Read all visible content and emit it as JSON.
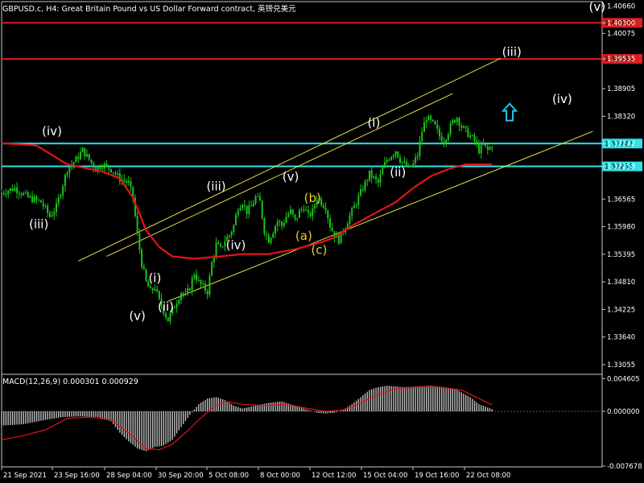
{
  "window": {
    "title": "GBPUSD.c, H4:  Great Britain Pound vs US Dollar Forward contract, 英镑兑美元"
  },
  "colors": {
    "background": "#000000",
    "candle": "#19c419",
    "ma": "#e0141c",
    "support_resistance_red": "#e21d1d",
    "support_resistance_cyan": "#2fe3e8",
    "channel": "#e8e24a",
    "wave_label_white": "#ffffff",
    "wave_label_yellow": "#e8d21e",
    "arrow": "#21c4e8",
    "macd_hist": "#c0c0c0",
    "macd_signal": "#e0141c"
  },
  "chart_data": [
    {
      "type": "candlestick",
      "symbol": "GBPUSD.c",
      "timeframe": "H4",
      "ylim": [
        1.3285,
        1.4075
      ],
      "y_ticks": [
        "1.40660",
        "1.40300",
        "1.40075",
        "1.39535",
        "1.38905",
        "1.38320",
        "1.37742",
        "1.37258",
        "1.36565",
        "1.35980",
        "1.35395",
        "1.34810",
        "1.34225",
        "1.33640",
        "1.33055"
      ],
      "x_tick_labels": [
        "21 Sep 2021",
        "23 Sep 16:00",
        "28 Sep 04:00",
        "30 Sep 20:00",
        "5 Oct 08:00",
        "8 Oct 00:00",
        "12 Oct 12:00",
        "15 Oct 04:00",
        "19 Oct 16:00",
        "22 Oct 08:00"
      ],
      "close_path": [
        [
          0,
          1.367
        ],
        [
          6,
          1.368
        ],
        [
          12,
          1.366
        ],
        [
          18,
          1.365
        ],
        [
          22,
          1.362
        ],
        [
          25,
          1.364
        ],
        [
          30,
          1.372
        ],
        [
          34,
          1.374
        ],
        [
          37,
          1.376
        ],
        [
          40,
          1.374
        ],
        [
          43,
          1.372
        ],
        [
          46,
          1.373
        ],
        [
          50,
          1.372
        ],
        [
          54,
          1.37
        ],
        [
          58,
          1.369
        ],
        [
          60,
          1.366
        ],
        [
          62,
          1.358
        ],
        [
          64,
          1.352
        ],
        [
          66,
          1.348
        ],
        [
          68,
          1.346
        ],
        [
          70,
          1.347
        ],
        [
          72,
          1.344
        ],
        [
          74,
          1.342
        ],
        [
          76,
          1.34
        ],
        [
          78,
          1.342
        ],
        [
          80,
          1.344
        ],
        [
          82,
          1.346
        ],
        [
          84,
          1.345
        ],
        [
          86,
          1.347
        ],
        [
          88,
          1.35
        ],
        [
          90,
          1.348
        ],
        [
          92,
          1.347
        ],
        [
          94,
          1.346
        ],
        [
          96,
          1.352
        ],
        [
          98,
          1.356
        ],
        [
          100,
          1.355
        ],
        [
          102,
          1.357
        ],
        [
          104,
          1.358
        ],
        [
          106,
          1.36
        ],
        [
          108,
          1.364
        ],
        [
          110,
          1.365
        ],
        [
          112,
          1.363
        ],
        [
          114,
          1.364
        ],
        [
          116,
          1.366
        ],
        [
          118,
          1.365
        ],
        [
          120,
          1.359
        ],
        [
          122,
          1.357
        ],
        [
          124,
          1.359
        ],
        [
          126,
          1.361
        ],
        [
          128,
          1.36
        ],
        [
          130,
          1.362
        ],
        [
          132,
          1.363
        ],
        [
          134,
          1.361
        ],
        [
          136,
          1.363
        ],
        [
          138,
          1.364
        ],
        [
          140,
          1.362
        ],
        [
          142,
          1.363
        ],
        [
          144,
          1.366
        ],
        [
          146,
          1.365
        ],
        [
          148,
          1.364
        ],
        [
          150,
          1.36
        ],
        [
          152,
          1.358
        ],
        [
          154,
          1.357
        ],
        [
          156,
          1.359
        ],
        [
          158,
          1.361
        ],
        [
          160,
          1.363
        ],
        [
          162,
          1.365
        ],
        [
          164,
          1.367
        ],
        [
          166,
          1.369
        ],
        [
          168,
          1.371
        ],
        [
          170,
          1.37
        ],
        [
          172,
          1.369
        ],
        [
          174,
          1.372
        ],
        [
          176,
          1.374
        ],
        [
          178,
          1.375
        ],
        [
          180,
          1.376
        ],
        [
          182,
          1.374
        ],
        [
          184,
          1.373
        ],
        [
          186,
          1.372
        ],
        [
          188,
          1.373
        ],
        [
          190,
          1.375
        ],
        [
          192,
          1.38
        ],
        [
          194,
          1.383
        ],
        [
          196,
          1.382
        ],
        [
          198,
          1.381
        ],
        [
          200,
          1.379
        ],
        [
          202,
          1.378
        ],
        [
          204,
          1.38
        ],
        [
          206,
          1.382
        ],
        [
          208,
          1.383
        ],
        [
          210,
          1.381
        ],
        [
          212,
          1.38
        ],
        [
          214,
          1.379
        ],
        [
          216,
          1.378
        ],
        [
          218,
          1.376
        ],
        [
          220,
          1.377
        ],
        [
          222,
          1.376
        ],
        [
          224,
          1.377
        ]
      ],
      "series": [
        {
          "kind": "moving_average",
          "points": [
            [
              0,
              1.3775
            ],
            [
              16,
              1.377
            ],
            [
              30,
              1.373
            ],
            [
              46,
              1.3715
            ],
            [
              54,
              1.37
            ],
            [
              60,
              1.366
            ],
            [
              66,
              1.359
            ],
            [
              72,
              1.3555
            ],
            [
              78,
              1.3535
            ],
            [
              88,
              1.353
            ],
            [
              100,
              1.3535
            ],
            [
              110,
              1.354
            ],
            [
              122,
              1.354
            ],
            [
              134,
              1.355
            ],
            [
              146,
              1.3565
            ],
            [
              152,
              1.3575
            ],
            [
              160,
              1.36
            ],
            [
              170,
              1.3625
            ],
            [
              180,
              1.365
            ],
            [
              188,
              1.368
            ],
            [
              196,
              1.3705
            ],
            [
              204,
              1.372
            ],
            [
              212,
              1.373
            ],
            [
              220,
              1.373
            ],
            [
              224,
              1.373
            ]
          ]
        }
      ],
      "horizontal_levels": [
        {
          "price": 1.403,
          "label": "1.40300",
          "color_key": "support_resistance_red"
        },
        {
          "price": 1.39535,
          "label": "1.39535",
          "color_key": "support_resistance_red"
        },
        {
          "price": 1.37742,
          "label": "1.37742",
          "color_key": "support_resistance_cyan"
        },
        {
          "price": 1.37258,
          "label": "1.37258",
          "color_key": "support_resistance_cyan"
        }
      ],
      "trendlines": [
        {
          "points": [
            [
              35,
              1.3525
            ],
            [
              228,
              1.3955
            ]
          ]
        },
        {
          "points": [
            [
              48,
              1.3535
            ],
            [
              206,
              1.388
            ]
          ]
        },
        {
          "points": [
            [
              76,
              1.344
            ],
            [
              270,
              1.38
            ]
          ]
        }
      ],
      "wave_labels": [
        {
          "text": "(iv)",
          "x": 23,
          "y": 1.3792,
          "color_key": "wave_label_white"
        },
        {
          "text": "(iii)",
          "x": 17,
          "y": 1.3595,
          "color_key": "wave_label_white"
        },
        {
          "text": "(v)",
          "x": 62,
          "y": 1.34,
          "color_key": "wave_label_white"
        },
        {
          "text": "(i)",
          "x": 70,
          "y": 1.348,
          "color_key": "wave_label_white"
        },
        {
          "text": "(ii)",
          "x": 75,
          "y": 1.342,
          "color_key": "wave_label_white"
        },
        {
          "text": "(iii)",
          "x": 98,
          "y": 1.3675,
          "color_key": "wave_label_white"
        },
        {
          "text": "(iv)",
          "x": 107,
          "y": 1.355,
          "color_key": "wave_label_white"
        },
        {
          "text": "(v)",
          "x": 132,
          "y": 1.3695,
          "color_key": "wave_label_white"
        },
        {
          "text": "(b)",
          "x": 142,
          "y": 1.365,
          "color_key": "wave_label_yellow"
        },
        {
          "text": "(a)",
          "x": 138,
          "y": 1.357,
          "color_key": "wave_label_yellow"
        },
        {
          "text": "(c)",
          "x": 145,
          "y": 1.354,
          "color_key": "wave_label_yellow"
        },
        {
          "text": "(i)",
          "x": 170,
          "y": 1.381,
          "color_key": "wave_label_white"
        },
        {
          "text": "(ii)",
          "x": 181,
          "y": 1.3705,
          "color_key": "wave_label_white"
        },
        {
          "text": "(iii)",
          "x": 233,
          "y": 1.396,
          "color_key": "wave_label_white"
        },
        {
          "text": "(iv)",
          "x": 256,
          "y": 1.386,
          "color_key": "wave_label_white"
        },
        {
          "text": "(v)",
          "x": 272,
          "y": 1.4055,
          "color_key": "wave_label_white"
        }
      ],
      "arrows": [
        {
          "direction": "up",
          "x": 232,
          "y": 1.384,
          "icon": "up-arrow-icon"
        }
      ]
    },
    {
      "type": "bar",
      "name": "MACD(12,26,9) 0.000301 0.000929",
      "ylim": [
        -0.0078,
        0.0052
      ],
      "y_ticks": [
        "0.004605",
        "0.000000",
        "-0.007678"
      ],
      "histogram_path": [
        [
          0,
          -0.002
        ],
        [
          10,
          -0.0018
        ],
        [
          20,
          -0.0012
        ],
        [
          28,
          -0.0008
        ],
        [
          36,
          -0.0007
        ],
        [
          44,
          -0.0008
        ],
        [
          50,
          -0.0014
        ],
        [
          54,
          -0.003
        ],
        [
          58,
          -0.0042
        ],
        [
          62,
          -0.0052
        ],
        [
          66,
          -0.0056
        ],
        [
          70,
          -0.005
        ],
        [
          74,
          -0.0048
        ],
        [
          78,
          -0.004
        ],
        [
          82,
          -0.0022
        ],
        [
          86,
          -0.0005
        ],
        [
          90,
          0.001
        ],
        [
          94,
          0.0018
        ],
        [
          98,
          0.002
        ],
        [
          102,
          0.0016
        ],
        [
          106,
          0.0008
        ],
        [
          110,
          0.0004
        ],
        [
          116,
          0.0008
        ],
        [
          122,
          0.0012
        ],
        [
          128,
          0.0014
        ],
        [
          132,
          0.001
        ],
        [
          136,
          0.0006
        ],
        [
          140,
          0.0002
        ],
        [
          144,
          -0.0002
        ],
        [
          148,
          -0.0003
        ],
        [
          152,
          -0.0002
        ],
        [
          156,
          0.0002
        ],
        [
          160,
          0.001
        ],
        [
          164,
          0.002
        ],
        [
          168,
          0.003
        ],
        [
          172,
          0.0034
        ],
        [
          176,
          0.0036
        ],
        [
          180,
          0.0035
        ],
        [
          184,
          0.0034
        ],
        [
          190,
          0.0035
        ],
        [
          196,
          0.0036
        ],
        [
          202,
          0.0034
        ],
        [
          208,
          0.003
        ],
        [
          214,
          0.002
        ],
        [
          218,
          0.001
        ],
        [
          224,
          0.0003
        ]
      ],
      "signal": [
        [
          0,
          -0.004
        ],
        [
          10,
          -0.0034
        ],
        [
          20,
          -0.0026
        ],
        [
          30,
          -0.001
        ],
        [
          40,
          -0.0008
        ],
        [
          50,
          -0.0012
        ],
        [
          58,
          -0.003
        ],
        [
          66,
          -0.0052
        ],
        [
          72,
          -0.0054
        ],
        [
          78,
          -0.0046
        ],
        [
          84,
          -0.003
        ],
        [
          90,
          -0.0012
        ],
        [
          96,
          0.0004
        ],
        [
          102,
          0.0014
        ],
        [
          110,
          0.001
        ],
        [
          120,
          0.0008
        ],
        [
          130,
          0.001
        ],
        [
          140,
          0.0004
        ],
        [
          148,
          0.0
        ],
        [
          156,
          0.0002
        ],
        [
          164,
          0.0012
        ],
        [
          172,
          0.0024
        ],
        [
          180,
          0.0032
        ],
        [
          190,
          0.0034
        ],
        [
          200,
          0.0034
        ],
        [
          210,
          0.003
        ],
        [
          218,
          0.0018
        ],
        [
          224,
          0.0009
        ]
      ]
    }
  ]
}
